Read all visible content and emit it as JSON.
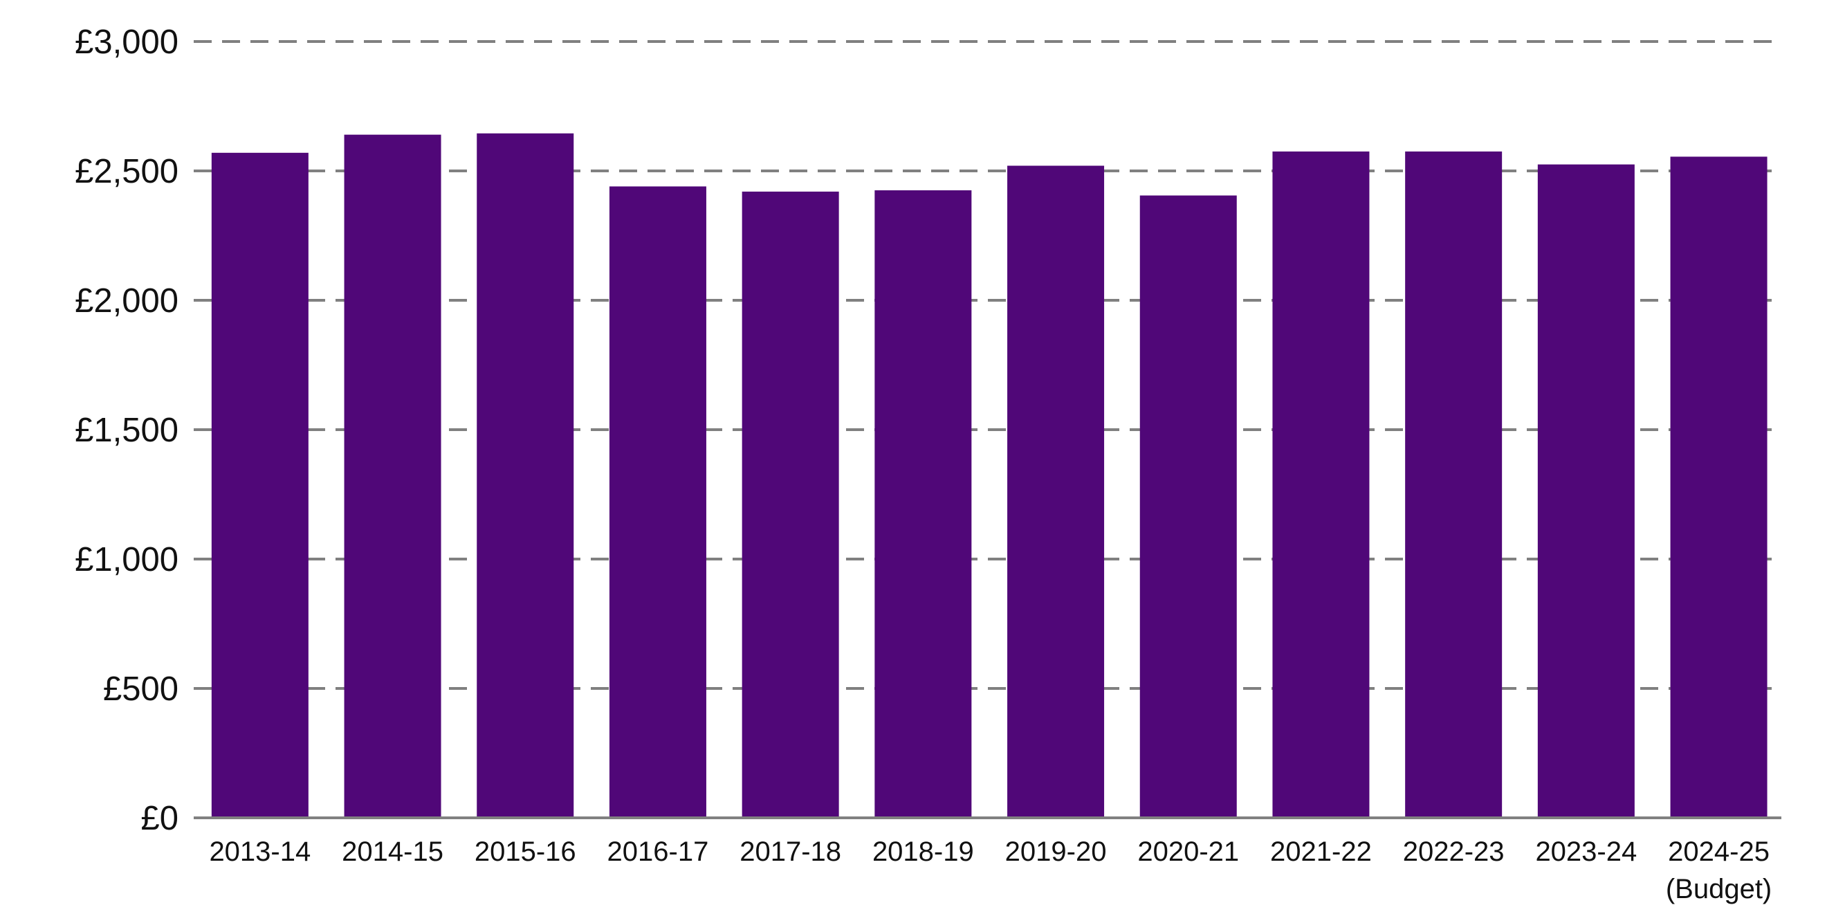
{
  "chart_data": {
    "type": "bar",
    "title": "",
    "xlabel": "",
    "ylabel": "",
    "categories": [
      "2013-14",
      "2014-15",
      "2015-16",
      "2016-17",
      "2017-18",
      "2018-19",
      "2019-20",
      "2020-21",
      "2021-22",
      "2022-23",
      "2023-24",
      "2024-25"
    ],
    "category_sublabels": [
      "",
      "",
      "",
      "",
      "",
      "",
      "",
      "",
      "",
      "",
      "",
      "(Budget)"
    ],
    "values": [
      2570,
      2640,
      2645,
      2440,
      2420,
      2425,
      2520,
      2405,
      2575,
      2575,
      2525,
      2555
    ],
    "ylim": [
      0,
      3000
    ],
    "yticks": [
      0,
      500,
      1000,
      1500,
      2000,
      2500,
      3000
    ],
    "ytick_labels": [
      "£0",
      "£500",
      "£1,000",
      "£1,500",
      "£2,000",
      "£2,500",
      "£3,000"
    ],
    "grid": true,
    "grid_style": "dashed",
    "legend": "none",
    "bar_color": "#500778",
    "grid_color": "#808080"
  }
}
